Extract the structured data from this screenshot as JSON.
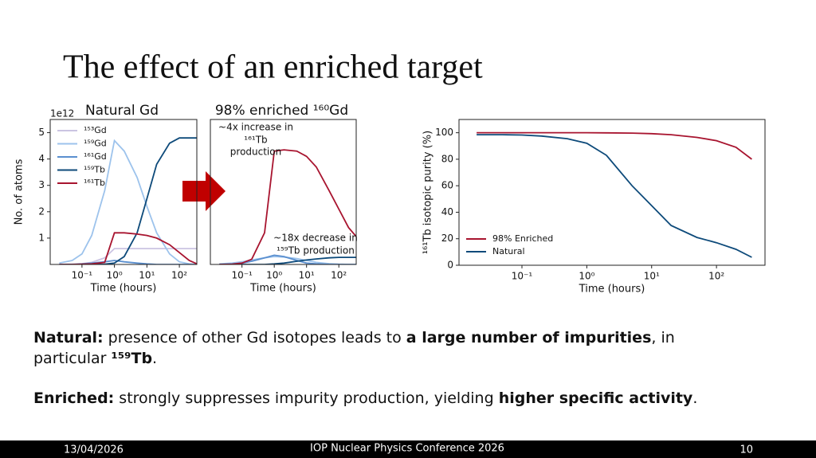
{
  "title": "The effect of an enriched target",
  "chart_data": [
    {
      "type": "line",
      "title": "Natural Gd",
      "y_offset_label": "1e12",
      "x_label": "Time (hours)",
      "y_label": "No. of atoms",
      "x_scale": "log",
      "xlim": [
        0.0105,
        345
      ],
      "ylim": [
        0,
        5.5
      ],
      "xticks": [
        {
          "value": 0.1,
          "label": "10⁻¹"
        },
        {
          "value": 1,
          "label": "10⁰"
        },
        {
          "value": 10,
          "label": "10¹"
        },
        {
          "value": 100,
          "label": "10²"
        }
      ],
      "yticks": [
        1,
        2,
        3,
        4,
        5
      ],
      "legend": "upper left",
      "x": [
        0.02,
        0.05,
        0.1,
        0.2,
        0.5,
        1,
        2,
        5,
        10,
        20,
        50,
        100,
        200,
        350
      ],
      "series": [
        {
          "name": "¹⁵³Gd",
          "color": "#cbc4e2",
          "values": [
            0,
            0.01,
            0.03,
            0.08,
            0.25,
            0.6,
            0.6,
            0.6,
            0.6,
            0.6,
            0.6,
            0.6,
            0.6,
            0.6
          ]
        },
        {
          "name": "¹⁵⁹Gd",
          "color": "#9dc3ec",
          "values": [
            0.05,
            0.15,
            0.4,
            1.1,
            2.8,
            4.7,
            4.3,
            3.3,
            2.2,
            1.2,
            0.4,
            0.1,
            0.02,
            0
          ]
        },
        {
          "name": "¹⁶¹Gd",
          "color": "#5a8fcf",
          "values": [
            0,
            0,
            0.02,
            0.05,
            0.1,
            0.15,
            0.1,
            0.05,
            0.02,
            0,
            0,
            0,
            0,
            0
          ]
        },
        {
          "name": "¹⁵⁹Tb",
          "color": "#0d4a7a",
          "values": [
            0,
            0,
            0,
            0,
            0.01,
            0.05,
            0.3,
            1.2,
            2.5,
            3.8,
            4.6,
            4.8,
            4.8,
            4.8
          ]
        },
        {
          "name": "¹⁶¹Tb",
          "color": "#a8142f",
          "values": [
            0,
            0,
            0.01,
            0.02,
            0.08,
            1.2,
            1.2,
            1.15,
            1.1,
            1.0,
            0.75,
            0.45,
            0.15,
            0.02
          ]
        }
      ]
    },
    {
      "type": "line",
      "title": "98% enriched ¹⁶⁰Gd",
      "x_label": "Time (hours)",
      "x_scale": "log",
      "xlim": [
        0.0105,
        345
      ],
      "ylim": [
        0,
        5.5
      ],
      "xticks": [
        {
          "value": 0.1,
          "label": "10⁻¹"
        },
        {
          "value": 1,
          "label": "10⁰"
        },
        {
          "value": 10,
          "label": "10¹"
        },
        {
          "value": 100,
          "label": "10²"
        }
      ],
      "annotations": [
        [
          "~4x increase in",
          "¹⁶¹Tb",
          "production"
        ],
        [
          "~18x decrease in",
          "¹⁵⁹Tb production"
        ]
      ],
      "x": [
        0.02,
        0.05,
        0.1,
        0.2,
        0.5,
        1,
        2,
        5,
        10,
        20,
        50,
        100,
        200,
        350
      ],
      "series": [
        {
          "color": "#9dc3ec",
          "values": [
            0.02,
            0.05,
            0.1,
            0.17,
            0.25,
            0.3,
            0.28,
            0.22,
            0.15,
            0.08,
            0.03,
            0.01,
            0,
            0
          ]
        },
        {
          "color": "#5a8fcf",
          "values": [
            0,
            0.02,
            0.05,
            0.12,
            0.25,
            0.35,
            0.3,
            0.15,
            0.05,
            0.02,
            0,
            0,
            0,
            0
          ]
        },
        {
          "color": "#0d4a7a",
          "values": [
            0,
            0,
            0,
            0,
            0,
            0.02,
            0.05,
            0.12,
            0.17,
            0.21,
            0.25,
            0.27,
            0.27,
            0.27
          ]
        },
        {
          "color": "#a8142f",
          "values": [
            0,
            0.01,
            0.05,
            0.2,
            1.2,
            4.3,
            4.35,
            4.3,
            4.1,
            3.7,
            2.8,
            2.1,
            1.4,
            1.05
          ]
        }
      ]
    },
    {
      "type": "line",
      "x_label": "Time (hours)",
      "y_label": "¹⁶¹Tb isotopic purity (%)",
      "x_scale": "log",
      "xlim": [
        0.0107,
        560
      ],
      "ylim": [
        0,
        110
      ],
      "xticks": [
        {
          "value": 0.1,
          "label": "10⁻¹"
        },
        {
          "value": 1,
          "label": "10⁰"
        },
        {
          "value": 10,
          "label": "10¹"
        },
        {
          "value": 100,
          "label": "10²"
        }
      ],
      "yticks": [
        0,
        20,
        40,
        60,
        80,
        100
      ],
      "legend": "lower left",
      "x": [
        0.02,
        0.05,
        0.1,
        0.2,
        0.5,
        1,
        2,
        5,
        10,
        20,
        50,
        100,
        200,
        350
      ],
      "series": [
        {
          "name": "98% Enriched",
          "color": "#a8142f",
          "values": [
            100,
            100,
            100,
            100,
            100,
            100,
            99.9,
            99.7,
            99.3,
            98.5,
            96.5,
            94,
            89,
            80
          ]
        },
        {
          "name": "Natural",
          "color": "#0d4a7a",
          "values": [
            98.5,
            98.5,
            98.3,
            97.5,
            95.5,
            92,
            83,
            60,
            45,
            30,
            21,
            17,
            12,
            6
          ]
        }
      ]
    }
  ],
  "body": [
    [
      {
        "text": "Natural:",
        "bold": true
      },
      {
        "text": " presence of other Gd isotopes leads to "
      },
      {
        "text": "a large number of impurities",
        "bold": true
      },
      {
        "text": ", in"
      }
    ],
    [
      {
        "text": "particular "
      },
      {
        "text": "¹⁵⁹Tb",
        "bold": true
      },
      {
        "text": "."
      }
    ],
    [
      {
        "text": "Enriched:",
        "bold": true
      },
      {
        "text": " strongly suppresses impurity production, yielding "
      },
      {
        "text": "higher specific activity",
        "bold": true
      },
      {
        "text": "."
      }
    ]
  ],
  "footer": {
    "date": "13/04/2026",
    "event": "IOP Nuclear Physics Conference 2026",
    "page": "10"
  }
}
